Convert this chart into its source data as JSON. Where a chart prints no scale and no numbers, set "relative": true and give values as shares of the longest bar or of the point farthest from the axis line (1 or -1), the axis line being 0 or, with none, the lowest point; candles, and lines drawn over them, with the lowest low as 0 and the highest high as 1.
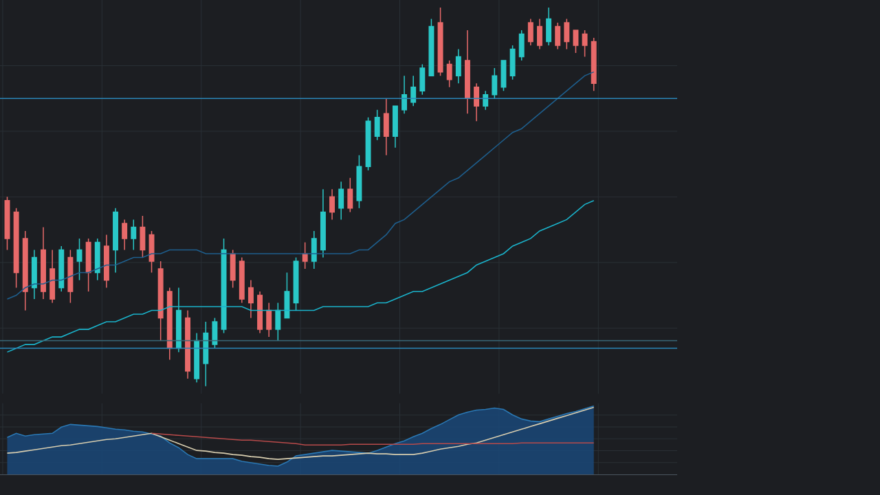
{
  "chart_data": [
    {
      "type": "candlestick",
      "relative": true,
      "grid": true,
      "categories": [
        null,
        null,
        null,
        null,
        null,
        null,
        null,
        null,
        null,
        null,
        null,
        null,
        null,
        null,
        null,
        null,
        null,
        null,
        null,
        null,
        null,
        null,
        null,
        null,
        null,
        null,
        null,
        null,
        null,
        null,
        null,
        null,
        null,
        null,
        null,
        null,
        null,
        null,
        null,
        null,
        null,
        null,
        null,
        null,
        null,
        null,
        null,
        null,
        null,
        null,
        null,
        null,
        null,
        null,
        null,
        null,
        null,
        null,
        null,
        null,
        null,
        null,
        null,
        null,
        null,
        null
      ],
      "ohlc": [
        [
          0.49,
          0.5,
          0.36,
          0.39
        ],
        [
          0.46,
          0.47,
          0.26,
          0.3
        ],
        [
          0.39,
          0.41,
          0.2,
          0.25
        ],
        [
          0.26,
          0.36,
          0.23,
          0.34
        ],
        [
          0.36,
          0.42,
          0.23,
          0.25
        ],
        [
          0.31,
          0.36,
          0.22,
          0.23
        ],
        [
          0.26,
          0.37,
          0.25,
          0.36
        ],
        [
          0.34,
          0.36,
          0.22,
          0.25
        ],
        [
          0.33,
          0.39,
          0.28,
          0.36
        ],
        [
          0.38,
          0.39,
          0.25,
          0.3
        ],
        [
          0.3,
          0.39,
          0.28,
          0.38
        ],
        [
          0.37,
          0.4,
          0.26,
          0.28
        ],
        [
          0.36,
          0.47,
          0.3,
          0.46
        ],
        [
          0.43,
          0.44,
          0.36,
          0.39
        ],
        [
          0.39,
          0.44,
          0.36,
          0.42
        ],
        [
          0.42,
          0.45,
          0.34,
          0.36
        ],
        [
          0.4,
          0.41,
          0.3,
          0.33
        ],
        [
          0.31,
          0.33,
          0.12,
          0.18
        ],
        [
          0.25,
          0.26,
          0.07,
          0.1
        ],
        [
          0.1,
          0.26,
          0.09,
          0.2
        ],
        [
          0.18,
          0.2,
          0.02,
          0.04
        ],
        [
          0.02,
          0.14,
          0.01,
          0.12
        ],
        [
          0.06,
          0.17,
          0.0,
          0.14
        ],
        [
          0.11,
          0.18,
          0.1,
          0.17
        ],
        [
          0.15,
          0.39,
          0.14,
          0.36
        ],
        [
          0.35,
          0.36,
          0.26,
          0.28
        ],
        [
          0.33,
          0.34,
          0.22,
          0.23
        ],
        [
          0.26,
          0.28,
          0.18,
          0.22
        ],
        [
          0.24,
          0.25,
          0.14,
          0.15
        ],
        [
          0.2,
          0.22,
          0.13,
          0.15
        ],
        [
          0.15,
          0.22,
          0.12,
          0.2
        ],
        [
          0.18,
          0.3,
          0.18,
          0.25
        ],
        [
          0.22,
          0.34,
          0.2,
          0.33
        ],
        [
          0.35,
          0.38,
          0.31,
          0.33
        ],
        [
          0.33,
          0.41,
          0.31,
          0.39
        ],
        [
          0.36,
          0.52,
          0.34,
          0.46
        ],
        [
          0.5,
          0.52,
          0.44,
          0.46
        ],
        [
          0.47,
          0.54,
          0.44,
          0.52
        ],
        [
          0.52,
          0.55,
          0.46,
          0.47
        ],
        [
          0.49,
          0.61,
          0.47,
          0.58
        ],
        [
          0.58,
          0.71,
          0.57,
          0.7
        ],
        [
          0.66,
          0.73,
          0.65,
          0.71
        ],
        [
          0.72,
          0.76,
          0.61,
          0.66
        ],
        [
          0.66,
          0.74,
          0.63,
          0.74
        ],
        [
          0.73,
          0.82,
          0.72,
          0.77
        ],
        [
          0.75,
          0.82,
          0.74,
          0.79
        ],
        [
          0.78,
          0.85,
          0.77,
          0.84
        ],
        [
          0.82,
          0.97,
          0.82,
          0.95
        ],
        [
          0.96,
          1.0,
          0.82,
          0.83
        ],
        [
          0.85,
          0.86,
          0.79,
          0.81
        ],
        [
          0.82,
          0.89,
          0.8,
          0.87
        ],
        [
          0.86,
          0.94,
          0.72,
          0.76
        ],
        [
          0.79,
          0.8,
          0.7,
          0.74
        ],
        [
          0.74,
          0.78,
          0.73,
          0.77
        ],
        [
          0.77,
          0.84,
          0.76,
          0.82
        ],
        [
          0.79,
          0.86,
          0.78,
          0.86
        ],
        [
          0.82,
          0.9,
          0.81,
          0.89
        ],
        [
          0.87,
          0.94,
          0.86,
          0.93
        ],
        [
          0.96,
          0.97,
          0.9,
          0.91
        ],
        [
          0.95,
          0.97,
          0.89,
          0.9
        ],
        [
          0.91,
          1.0,
          0.9,
          0.97
        ],
        [
          0.95,
          0.96,
          0.89,
          0.9
        ],
        [
          0.96,
          0.97,
          0.89,
          0.91
        ],
        [
          0.94,
          0.94,
          0.88,
          0.9
        ],
        [
          0.93,
          0.94,
          0.87,
          0.9
        ],
        [
          0.91,
          0.92,
          0.78,
          0.8
        ]
      ],
      "colors": [
        "#e86a6a",
        "#e86a6a",
        "#e86a6a",
        "#2ac8c8",
        "#e86a6a",
        "#e86a6a",
        "#2ac8c8",
        "#e86a6a",
        "#2ac8c8",
        "#e86a6a",
        "#2ac8c8",
        "#e86a6a",
        "#2ac8c8",
        "#e86a6a",
        "#2ac8c8",
        "#e86a6a",
        "#e86a6a",
        "#e86a6a",
        "#e86a6a",
        "#2ac8c8",
        "#e86a6a",
        "#2ac8c8",
        "#2ac8c8",
        "#2ac8c8",
        "#2ac8c8",
        "#e86a6a",
        "#e86a6a",
        "#e86a6a",
        "#e86a6a",
        "#e86a6a",
        "#2ac8c8",
        "#2ac8c8",
        "#2ac8c8",
        "#e86a6a",
        "#2ac8c8",
        "#2ac8c8",
        "#e86a6a",
        "#2ac8c8",
        "#e86a6a",
        "#2ac8c8",
        "#2ac8c8",
        "#2ac8c8",
        "#e86a6a",
        "#2ac8c8",
        "#2ac8c8",
        "#2ac8c8",
        "#2ac8c8",
        "#2ac8c8",
        "#e86a6a",
        "#e86a6a",
        "#2ac8c8",
        "#e86a6a",
        "#e86a6a",
        "#2ac8c8",
        "#2ac8c8",
        "#2ac8c8",
        "#2ac8c8",
        "#2ac8c8",
        "#e86a6a",
        "#e86a6a",
        "#2ac8c8",
        "#e86a6a",
        "#e86a6a",
        "#e86a6a",
        "#e86a6a",
        "#e86a6a"
      ],
      "series": [
        {
          "type": "line",
          "color": "#1ab4cc",
          "values": [
            0.09,
            0.1,
            0.11,
            0.11,
            0.12,
            0.13,
            0.13,
            0.14,
            0.15,
            0.15,
            0.16,
            0.17,
            0.17,
            0.18,
            0.19,
            0.19,
            0.2,
            0.2,
            0.21,
            0.21,
            0.21,
            0.21,
            0.21,
            0.21,
            0.21,
            0.21,
            0.21,
            0.2,
            0.2,
            0.2,
            0.2,
            0.2,
            0.2,
            0.2,
            0.2,
            0.21,
            0.21,
            0.21,
            0.21,
            0.21,
            0.21,
            0.22,
            0.22,
            0.23,
            0.24,
            0.25,
            0.25,
            0.26,
            0.27,
            0.28,
            0.29,
            0.3,
            0.32,
            0.33,
            0.34,
            0.35,
            0.37,
            0.38,
            0.39,
            0.41,
            0.42,
            0.43,
            0.44,
            0.46,
            0.48,
            0.49
          ]
        },
        {
          "type": "line",
          "color": "#1e5f8e",
          "values": [
            0.23,
            0.24,
            0.26,
            0.27,
            0.27,
            0.28,
            0.28,
            0.29,
            0.3,
            0.3,
            0.31,
            0.32,
            0.32,
            0.33,
            0.34,
            0.34,
            0.35,
            0.35,
            0.36,
            0.36,
            0.36,
            0.36,
            0.35,
            0.35,
            0.35,
            0.35,
            0.35,
            0.35,
            0.35,
            0.35,
            0.35,
            0.35,
            0.35,
            0.35,
            0.35,
            0.35,
            0.35,
            0.35,
            0.35,
            0.36,
            0.36,
            0.38,
            0.4,
            0.43,
            0.44,
            0.46,
            0.48,
            0.5,
            0.52,
            0.54,
            0.55,
            0.57,
            0.59,
            0.61,
            0.63,
            0.65,
            0.67,
            0.68,
            0.7,
            0.72,
            0.74,
            0.76,
            0.78,
            0.8,
            0.82,
            0.83
          ]
        }
      ],
      "ref_lines": [
        {
          "axis": "y",
          "value": 0.76,
          "color": "#2a86b8"
        },
        {
          "axis": "y",
          "value": 0.12,
          "color": "#3a6878"
        },
        {
          "axis": "y",
          "value": 0.1,
          "color": "#2a86b8"
        }
      ]
    },
    {
      "type": "area",
      "relative": true,
      "grid": true,
      "categories": [
        null,
        null,
        null,
        null,
        null,
        null,
        null,
        null,
        null,
        null,
        null,
        null,
        null,
        null,
        null,
        null,
        null,
        null,
        null,
        null,
        null,
        null,
        null,
        null,
        null,
        null,
        null,
        null,
        null,
        null,
        null,
        null,
        null,
        null,
        null,
        null,
        null,
        null,
        null,
        null,
        null,
        null,
        null,
        null,
        null,
        null,
        null,
        null,
        null,
        null,
        null,
        null,
        null,
        null,
        null,
        null,
        null,
        null,
        null,
        null,
        null,
        null,
        null,
        null,
        null,
        null
      ],
      "series": [
        {
          "type": "area",
          "color": "#2a78b4",
          "values": [
            0.54,
            0.6,
            0.56,
            0.58,
            0.59,
            0.6,
            0.69,
            0.73,
            0.72,
            0.71,
            0.7,
            0.68,
            0.66,
            0.65,
            0.63,
            0.62,
            0.59,
            0.56,
            0.46,
            0.39,
            0.29,
            0.23,
            0.23,
            0.23,
            0.23,
            0.23,
            0.19,
            0.17,
            0.15,
            0.13,
            0.12,
            0.18,
            0.27,
            0.29,
            0.31,
            0.33,
            0.35,
            0.34,
            0.33,
            0.32,
            0.31,
            0.35,
            0.4,
            0.45,
            0.49,
            0.55,
            0.6,
            0.67,
            0.73,
            0.8,
            0.87,
            0.91,
            0.94,
            0.95,
            0.97,
            0.95,
            0.87,
            0.81,
            0.78,
            0.77,
            0.81,
            0.85,
            0.89,
            0.92,
            0.96,
            1.0
          ]
        },
        {
          "type": "line",
          "color": "#d8ceb0",
          "values": [
            0.31,
            0.32,
            0.34,
            0.36,
            0.38,
            0.4,
            0.42,
            0.43,
            0.45,
            0.47,
            0.49,
            0.51,
            0.52,
            0.54,
            0.56,
            0.58,
            0.6,
            0.55,
            0.5,
            0.45,
            0.4,
            0.35,
            0.34,
            0.32,
            0.31,
            0.29,
            0.28,
            0.26,
            0.25,
            0.23,
            0.22,
            0.23,
            0.24,
            0.25,
            0.26,
            0.27,
            0.27,
            0.28,
            0.29,
            0.3,
            0.31,
            0.3,
            0.3,
            0.29,
            0.29,
            0.29,
            0.31,
            0.34,
            0.37,
            0.39,
            0.41,
            0.44,
            0.46,
            0.5,
            0.54,
            0.58,
            0.62,
            0.66,
            0.7,
            0.74,
            0.78,
            0.82,
            0.86,
            0.9,
            0.94,
            0.98
          ]
        },
        {
          "type": "line",
          "color": "#b84a4a",
          "values": [
            null,
            null,
            null,
            null,
            null,
            null,
            null,
            null,
            null,
            null,
            null,
            null,
            null,
            null,
            null,
            null,
            0.6,
            0.59,
            0.58,
            0.57,
            0.56,
            0.55,
            0.54,
            0.53,
            0.52,
            0.51,
            0.5,
            0.5,
            0.49,
            0.48,
            0.47,
            0.46,
            0.45,
            0.43,
            0.43,
            0.43,
            0.43,
            0.43,
            0.44,
            0.44,
            0.44,
            0.44,
            0.44,
            0.44,
            0.44,
            0.44,
            0.45,
            0.45,
            0.45,
            0.45,
            0.45,
            0.45,
            0.45,
            0.45,
            0.45,
            0.45,
            0.45,
            0.46,
            0.46,
            0.46,
            0.46,
            0.46,
            0.46,
            0.46,
            0.46,
            0.46
          ]
        }
      ]
    }
  ]
}
